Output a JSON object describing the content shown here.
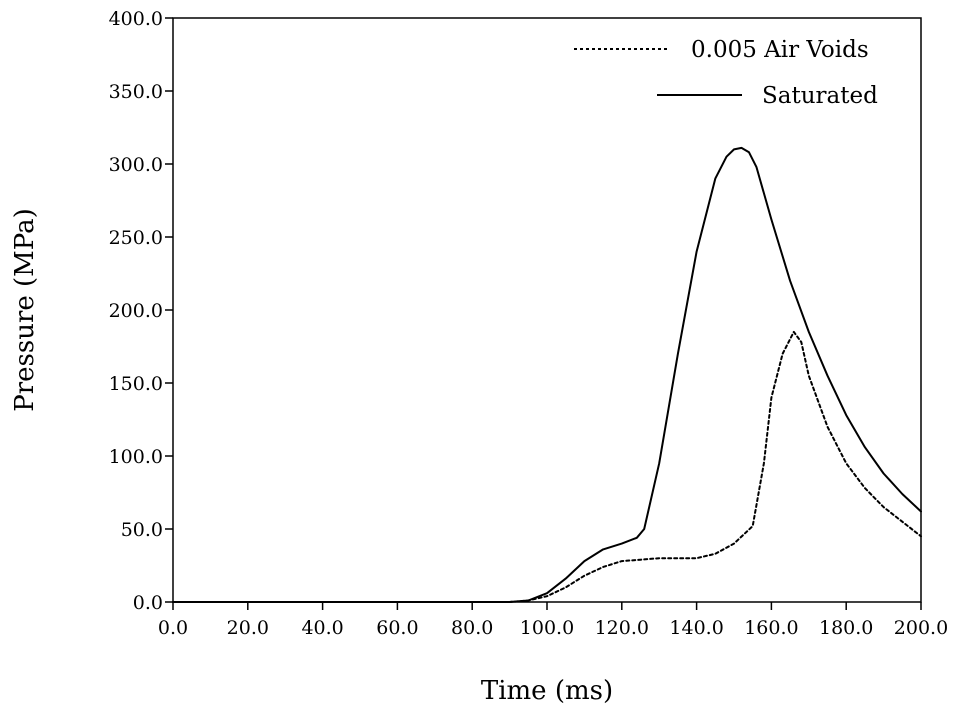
{
  "chart_data": {
    "type": "line",
    "xlabel": "Time (ms)",
    "ylabel": "Pressure (MPa)",
    "xlim": [
      0,
      200
    ],
    "ylim": [
      0,
      400
    ],
    "xticks": [
      "0.0",
      "20.0",
      "40.0",
      "60.0",
      "80.0",
      "100.0",
      "120.0",
      "140.0",
      "160.0",
      "180.0",
      "200.0"
    ],
    "yticks": [
      "0.0",
      "50.0",
      "100.0",
      "150.0",
      "200.0",
      "250.0",
      "300.0",
      "350.0",
      "400.0"
    ],
    "grid": false,
    "legend": "top-right",
    "series": [
      {
        "name": "0.005 Air Voids",
        "style": "dotted",
        "color": "#000000",
        "x": [
          0,
          90,
          95,
          100,
          105,
          110,
          115,
          120,
          125,
          130,
          135,
          140,
          145,
          150,
          155,
          158,
          160,
          163,
          166,
          168,
          170,
          175,
          180,
          185,
          190,
          195,
          200
        ],
        "y": [
          0,
          0,
          1,
          4,
          10,
          18,
          24,
          28,
          29,
          30,
          30,
          30,
          33,
          40,
          52,
          95,
          140,
          170,
          185,
          178,
          155,
          120,
          95,
          78,
          65,
          55,
          45
        ]
      },
      {
        "name": "Saturated",
        "style": "solid",
        "color": "#000000",
        "x": [
          0,
          90,
          95,
          100,
          105,
          110,
          115,
          120,
          124,
          126,
          130,
          135,
          140,
          145,
          148,
          150,
          152,
          154,
          156,
          160,
          165,
          170,
          175,
          180,
          185,
          190,
          195,
          200
        ],
        "y": [
          0,
          0,
          1,
          6,
          16,
          28,
          36,
          40,
          44,
          50,
          95,
          170,
          240,
          290,
          305,
          310,
          311,
          308,
          298,
          262,
          220,
          185,
          155,
          128,
          106,
          88,
          74,
          62
        ]
      }
    ]
  }
}
